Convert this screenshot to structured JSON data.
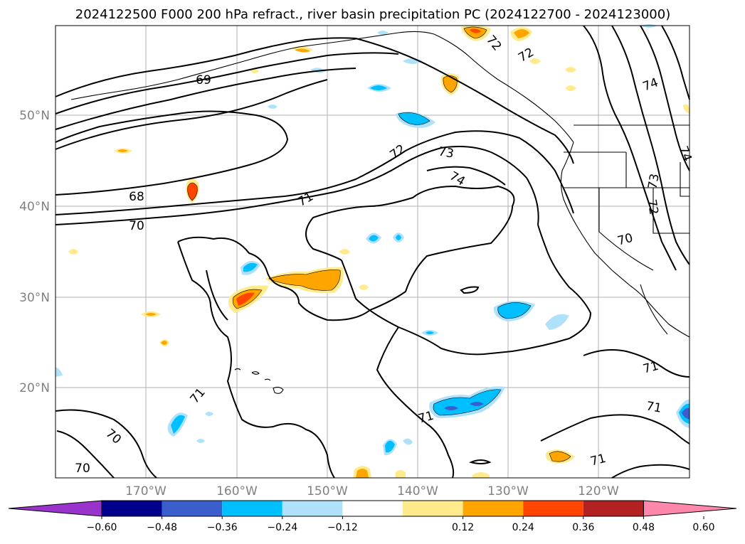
{
  "title": "2024122500 F000 200 hPa refract., river basin precipitation PC (2024122700 - 2024123000)",
  "map": {
    "lat_labels": [
      "50°N",
      "40°N",
      "30°N",
      "20°N"
    ],
    "lon_labels": [
      "170°W",
      "160°W",
      "150°W",
      "140°W",
      "130°W",
      "120°W"
    ],
    "contour_labels": [
      "69",
      "68",
      "70",
      "71",
      "72",
      "73",
      "74",
      "72",
      "72",
      "74",
      "74",
      "73",
      "72",
      "70",
      "71",
      "71",
      "71",
      "70",
      "70",
      "71",
      "71"
    ],
    "colors": {
      "contour": "#000000",
      "grid": "#b0b0b0",
      "land": "#000000"
    }
  },
  "colorbar": {
    "ticks": [
      "−0.60",
      "−0.48",
      "−0.36",
      "−0.24",
      "−0.12",
      "0.12",
      "0.24",
      "0.36",
      "0.48",
      "0.60"
    ],
    "colors": [
      "#9933cc",
      "#00008b",
      "#3a5fcd",
      "#00bfff",
      "#afe2fa",
      "#ffffff",
      "#ffeb8c",
      "#ffa500",
      "#ff4500",
      "#b22222",
      "#ff88aa"
    ]
  }
}
